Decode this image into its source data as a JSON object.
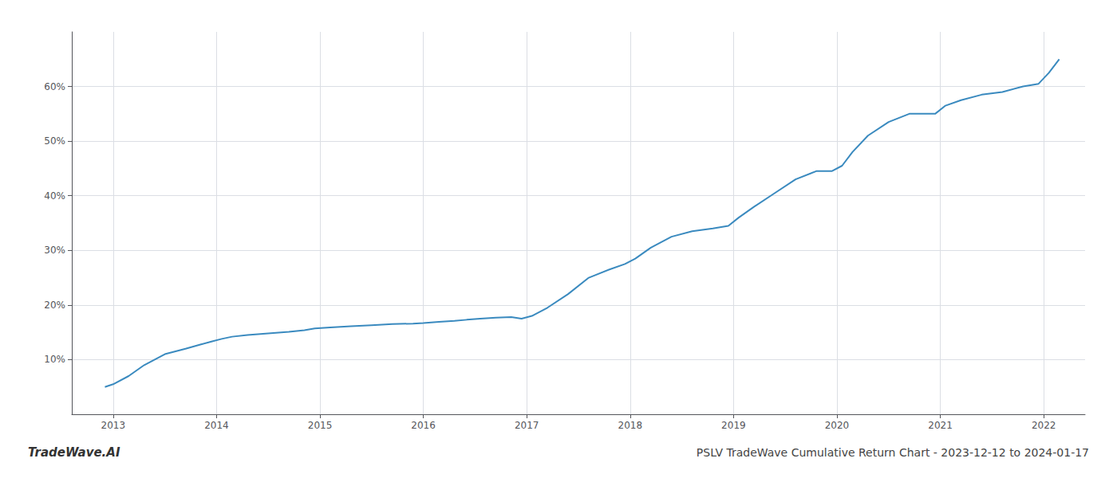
{
  "chart_data": {
    "type": "line",
    "title": "PSLV TradeWave Cumulative Return Chart - 2023-12-12 to 2024-01-17",
    "annotations": [
      "TradeWave.AI"
    ],
    "color": "#3a8abf",
    "grid": true,
    "x": [
      2012.92,
      2013.0,
      2013.15,
      2013.3,
      2013.5,
      2013.7,
      2013.85,
      2013.95,
      2014.05,
      2014.15,
      2014.3,
      2014.5,
      2014.7,
      2014.85,
      2014.95,
      2015.1,
      2015.3,
      2015.5,
      2015.7,
      2015.9,
      2016.0,
      2016.15,
      2016.3,
      2016.42,
      2016.55,
      2016.7,
      2016.85,
      2016.95,
      2017.05,
      2017.2,
      2017.4,
      2017.6,
      2017.8,
      2017.95,
      2018.05,
      2018.2,
      2018.4,
      2018.6,
      2018.8,
      2018.95,
      2019.05,
      2019.2,
      2019.4,
      2019.6,
      2019.8,
      2019.95,
      2020.05,
      2020.15,
      2020.3,
      2020.5,
      2020.7,
      2020.85,
      2020.95,
      2021.05,
      2021.2,
      2021.4,
      2021.6,
      2021.8,
      2021.95,
      2022.05,
      2022.15
    ],
    "values": [
      5.0,
      5.5,
      7.0,
      9.0,
      11.0,
      12.0,
      12.8,
      13.3,
      13.8,
      14.2,
      14.5,
      14.8,
      15.1,
      15.4,
      15.7,
      15.9,
      16.1,
      16.3,
      16.5,
      16.6,
      16.7,
      16.9,
      17.1,
      17.3,
      17.5,
      17.7,
      17.8,
      17.5,
      18.0,
      19.5,
      22.0,
      25.0,
      26.5,
      27.5,
      28.5,
      30.5,
      32.5,
      33.5,
      34.0,
      34.5,
      36.0,
      38.0,
      40.5,
      43.0,
      44.5,
      44.5,
      45.5,
      48.0,
      51.0,
      53.5,
      55.0,
      55.0,
      55.0,
      56.5,
      57.5,
      58.5,
      59.0,
      60.0,
      60.5,
      62.5,
      65.0
    ],
    "xlim": [
      2012.6,
      2022.4
    ],
    "xticks": [
      2013,
      2014,
      2015,
      2016,
      2017,
      2018,
      2019,
      2020,
      2021,
      2022
    ],
    "ylim": [
      0,
      70
    ],
    "yticks": [
      {
        "value": 10,
        "label": "10%"
      },
      {
        "value": 20,
        "label": "20%"
      },
      {
        "value": 30,
        "label": "30%"
      },
      {
        "value": 40,
        "label": "40%"
      },
      {
        "value": 50,
        "label": "50%"
      },
      {
        "value": 60,
        "label": "60%"
      }
    ]
  }
}
